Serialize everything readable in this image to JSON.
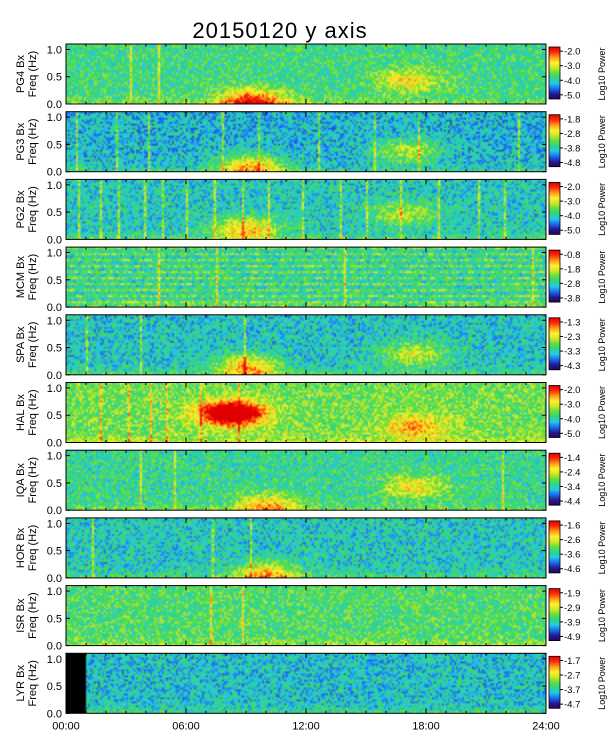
{
  "title": "20150120 y axis",
  "chart_data": {
    "type": "heatmap",
    "title": "20150120 y axis",
    "x_axis": {
      "ticks": [
        "00:00",
        "06:00",
        "12:00",
        "18:00",
        "24:00"
      ],
      "range_hours": [
        0,
        24
      ]
    },
    "y_axis_ticks": [
      "0.0",
      "0.5",
      "1.0"
    ],
    "y_range_hz": [
      0,
      1.1
    ],
    "colorbar_label": "Log10 Power",
    "colormap": [
      "#30005a",
      "#1e1e96",
      "#1c6cf2",
      "#26c8e6",
      "#2fd488",
      "#5ee03e",
      "#cfe628",
      "#fff22a",
      "#ff9a18",
      "#ff2a0a",
      "#e00000"
    ],
    "panels": [
      {
        "station": "PG4",
        "ylabel": "PG4 Bx\nFreq (Hz)",
        "cbar_ticks": [
          "-2.0",
          "-3.0",
          "-4.0",
          "-5.0"
        ],
        "events": [
          {
            "t": 9.3,
            "f": 0.05,
            "amp": 0.55
          },
          {
            "t": 17.1,
            "f": 0.45,
            "amp": 0.28
          }
        ],
        "spikes": [
          3.2,
          4.6
        ],
        "base": 0.42
      },
      {
        "station": "PG3",
        "ylabel": "PG3 Bx\nFreq (Hz)",
        "cbar_ticks": [
          "-1.8",
          "-2.8",
          "-3.8",
          "-4.8"
        ],
        "events": [
          {
            "t": 9.2,
            "f": 0.1,
            "amp": 0.45
          },
          {
            "t": 17.0,
            "f": 0.4,
            "amp": 0.3
          }
        ],
        "spikes": [
          0.5,
          2.5,
          4.1,
          7.8,
          9.6,
          12.6,
          15.4,
          17.6,
          22.6
        ],
        "base": 0.3
      },
      {
        "station": "PG2",
        "ylabel": "PG2 Bx\nFreq (Hz)",
        "cbar_ticks": [
          "-2.0",
          "-3.0",
          "-4.0",
          "-5.0"
        ],
        "events": [
          {
            "t": 9.0,
            "f": 0.2,
            "amp": 0.42
          },
          {
            "t": 16.8,
            "f": 0.5,
            "amp": 0.25
          }
        ],
        "spikes": [
          0.6,
          1.7,
          2.6,
          3.9,
          4.8,
          6.0,
          7.4,
          8.8,
          10.1,
          11.8,
          13.7,
          15.0,
          16.7,
          18.6,
          20.6,
          21.9
        ],
        "base": 0.34
      },
      {
        "station": "MCM",
        "ylabel": "MCM Bx\nFreq (Hz)",
        "cbar_ticks": [
          "-0.8",
          "-1.8",
          "-2.8",
          "-3.8"
        ],
        "events": [],
        "spikes": [
          4.6,
          7.5,
          13.9,
          23.3
        ],
        "base": 0.38,
        "hlines": true
      },
      {
        "station": "SPA",
        "ylabel": "SPA Bx\nFreq (Hz)",
        "cbar_ticks": [
          "-1.3",
          "-2.3",
          "-3.3",
          "-4.3"
        ],
        "events": [
          {
            "t": 9.0,
            "f": 0.15,
            "amp": 0.45
          },
          {
            "t": 17.4,
            "f": 0.4,
            "amp": 0.3
          }
        ],
        "spikes": [
          1.0,
          3.7,
          8.9
        ],
        "base": 0.33
      },
      {
        "station": "HAL",
        "ylabel": "HAL Bx\nFreq (Hz)",
        "cbar_ticks": [
          "-2.0",
          "-3.0",
          "-4.0",
          "-5.0"
        ],
        "events": [
          {
            "t": 8.2,
            "f": 0.55,
            "amp": 0.85
          },
          {
            "t": 17.5,
            "f": 0.3,
            "amp": 0.3
          }
        ],
        "spikes": [
          1.7,
          3.1,
          4.2,
          5.0,
          6.7,
          8.6
        ],
        "base": 0.5
      },
      {
        "station": "IQA",
        "ylabel": "IQA Bx\nFreq (Hz)",
        "cbar_ticks": [
          "-1.4",
          "-2.4",
          "-3.4",
          "-4.4"
        ],
        "events": [
          {
            "t": 10.0,
            "f": 0.1,
            "amp": 0.35
          },
          {
            "t": 17.4,
            "f": 0.45,
            "amp": 0.3
          }
        ],
        "spikes": [
          3.7,
          5.4,
          21.8
        ],
        "base": 0.4
      },
      {
        "station": "HOR",
        "ylabel": "HOR Bx\nFreq (Hz)",
        "cbar_ticks": [
          "-1.6",
          "-2.6",
          "-3.6",
          "-4.6"
        ],
        "events": [
          {
            "t": 10.0,
            "f": 0.08,
            "amp": 0.4
          }
        ],
        "spikes": [
          1.3,
          7.3,
          9.2
        ],
        "base": 0.34
      },
      {
        "station": "ISR",
        "ylabel": "ISR Bx\nFreq (Hz)",
        "cbar_ticks": [
          "-1.9",
          "-2.9",
          "-3.9",
          "-4.9"
        ],
        "events": [],
        "spikes": [
          7.2,
          8.8
        ],
        "base": 0.45
      },
      {
        "station": "LYR",
        "ylabel": "LYR Bx\nFreq (Hz)",
        "cbar_ticks": [
          "-1.7",
          "-2.7",
          "-3.7",
          "-4.7"
        ],
        "events": [],
        "spikes": [
          0.9
        ],
        "base": 0.32,
        "gap_hours": [
          0,
          0.9
        ]
      }
    ]
  }
}
